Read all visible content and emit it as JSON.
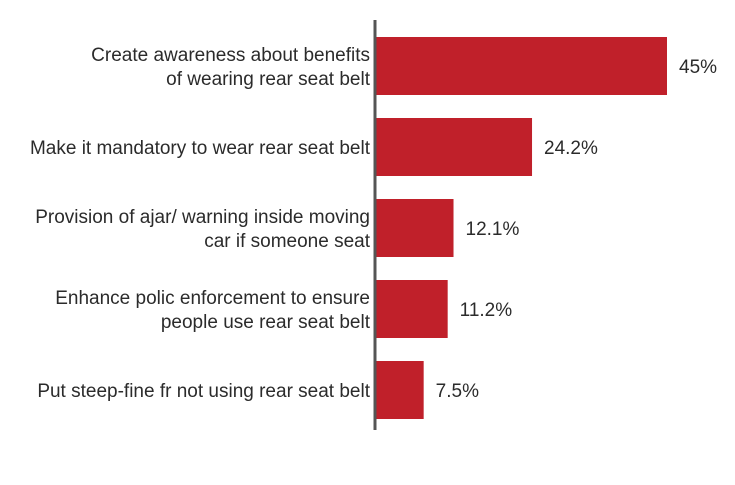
{
  "chart_data": {
    "type": "bar",
    "orientation": "horizontal",
    "categories": [
      [
        "Create awareness about benefits",
        "of wearing rear seat belt"
      ],
      [
        "Make it mandatory to wear rear seat belt"
      ],
      [
        "Provision of ajar/ warning inside moving",
        "car if someone seat"
      ],
      [
        "Enhance polic enforcement to ensure",
        "people use rear seat belt"
      ],
      [
        "Put steep-fine fr not using rear seat belt"
      ]
    ],
    "values": [
      45,
      24.2,
      12.1,
      11.2,
      7.5
    ],
    "value_labels": [
      "45%",
      "24.2%",
      "12.1%",
      "11.2%",
      "7.5%"
    ],
    "title": "",
    "xlabel": "",
    "ylabel": "",
    "xlim": [
      0,
      50
    ],
    "grid": false,
    "legend": "none",
    "bar_color": "#c0202a",
    "axis_color": "#555555"
  }
}
